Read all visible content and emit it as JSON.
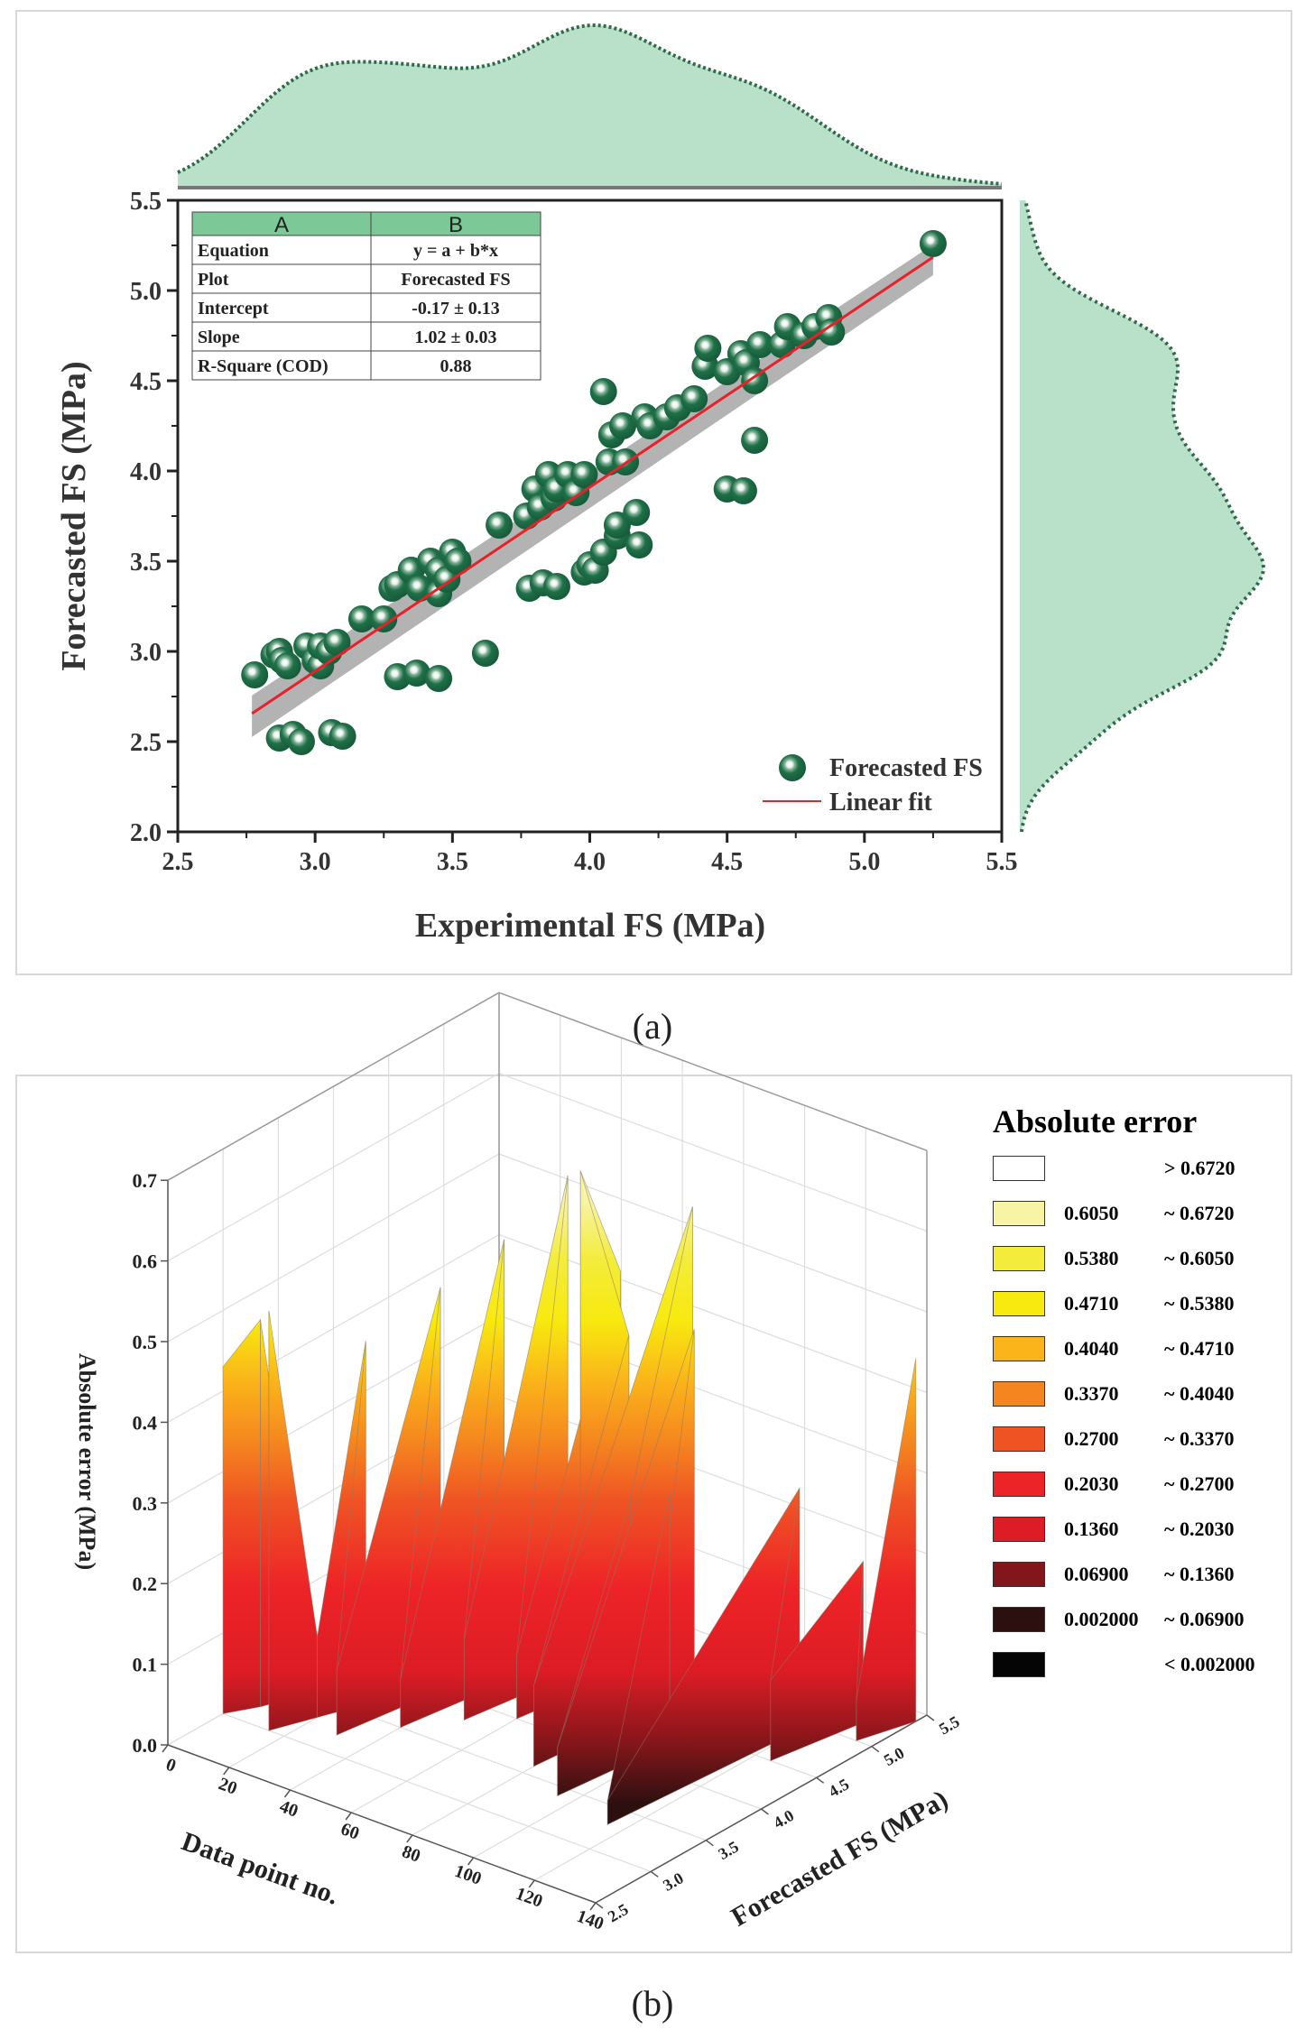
{
  "captions": {
    "a": "(a)",
    "b": "(b)"
  },
  "chart_data": [
    {
      "type": "scatter",
      "xlabel": "Experimental FS (MPa)",
      "ylabel": "Forecasted FS (MPa)",
      "xlim": [
        2.5,
        5.5
      ],
      "ylim": [
        2.0,
        5.5
      ],
      "xticks": [
        "2.5",
        "3.0",
        "3.5",
        "4.0",
        "4.5",
        "5.0",
        "5.5"
      ],
      "yticks": [
        "2.0",
        "2.5",
        "3.0",
        "3.5",
        "4.0",
        "4.5",
        "5.0",
        "5.5"
      ],
      "grid": false,
      "legend_placement": "bottom-right",
      "legend": [
        {
          "label": "Forecasted FS",
          "marker": "sphere"
        },
        {
          "label": "Linear fit",
          "marker": "line"
        }
      ],
      "colors": {
        "points": "#1e7048",
        "fit": "#e8202a",
        "band": "#b3b3b3",
        "density_fill": "#b9e0c9",
        "density_line": "#2e6b4a",
        "table_header": "#7cc896"
      },
      "fit": {
        "intercept": -0.17,
        "slope": 1.02
      },
      "marginals": {
        "top": "density of Experimental FS",
        "right": "density of Forecasted FS"
      },
      "table": {
        "header": [
          "A",
          "B"
        ],
        "rows": [
          [
            "Equation",
            "y = a + b*x"
          ],
          [
            "Plot",
            "Forecasted FS"
          ],
          [
            "Intercept",
            "-0.17 ± 0.13"
          ],
          [
            "Slope",
            "1.02 ± 0.03"
          ],
          [
            "R-Square (COD)",
            "0.88"
          ]
        ]
      },
      "points": [
        [
          2.78,
          2.87
        ],
        [
          2.85,
          2.98
        ],
        [
          2.87,
          3.0
        ],
        [
          2.88,
          2.95
        ],
        [
          2.9,
          2.92
        ],
        [
          2.97,
          3.03
        ],
        [
          3.0,
          2.95
        ],
        [
          3.02,
          2.92
        ],
        [
          3.02,
          3.03
        ],
        [
          3.05,
          3.0
        ],
        [
          3.08,
          3.05
        ],
        [
          3.17,
          3.18
        ],
        [
          3.25,
          3.18
        ],
        [
          3.28,
          3.35
        ],
        [
          3.3,
          3.37
        ],
        [
          3.35,
          3.45
        ],
        [
          3.38,
          3.35
        ],
        [
          3.42,
          3.5
        ],
        [
          3.45,
          3.45
        ],
        [
          3.45,
          3.32
        ],
        [
          3.48,
          3.4
        ],
        [
          3.5,
          3.55
        ],
        [
          3.52,
          3.5
        ],
        [
          3.67,
          3.7
        ],
        [
          3.77,
          3.75
        ],
        [
          3.8,
          3.9
        ],
        [
          3.82,
          3.8
        ],
        [
          3.85,
          3.98
        ],
        [
          3.87,
          3.85
        ],
        [
          3.88,
          3.9
        ],
        [
          3.92,
          3.98
        ],
        [
          3.95,
          3.88
        ],
        [
          3.98,
          3.98
        ],
        [
          4.05,
          4.44
        ],
        [
          4.07,
          4.05
        ],
        [
          4.08,
          4.2
        ],
        [
          4.12,
          4.25
        ],
        [
          4.13,
          4.05
        ],
        [
          4.2,
          4.3
        ],
        [
          4.22,
          4.25
        ],
        [
          4.28,
          4.3
        ],
        [
          4.32,
          4.35
        ],
        [
          4.38,
          4.4
        ],
        [
          4.42,
          4.58
        ],
        [
          4.43,
          4.68
        ],
        [
          4.5,
          4.55
        ],
        [
          4.55,
          4.65
        ],
        [
          4.57,
          4.6
        ],
        [
          4.6,
          4.5
        ],
        [
          4.62,
          4.7
        ],
        [
          4.7,
          4.7
        ],
        [
          4.72,
          4.8
        ],
        [
          4.78,
          4.75
        ],
        [
          4.82,
          4.8
        ],
        [
          4.87,
          4.85
        ],
        [
          4.88,
          4.77
        ],
        [
          5.25,
          5.26
        ],
        [
          2.87,
          2.52
        ],
        [
          2.92,
          2.54
        ],
        [
          2.95,
          2.5
        ],
        [
          3.06,
          2.55
        ],
        [
          3.1,
          2.53
        ],
        [
          3.3,
          2.86
        ],
        [
          3.37,
          2.88
        ],
        [
          3.45,
          2.85
        ],
        [
          3.62,
          2.99
        ],
        [
          3.78,
          3.35
        ],
        [
          3.83,
          3.38
        ],
        [
          3.88,
          3.36
        ],
        [
          3.98,
          3.44
        ],
        [
          4.0,
          3.48
        ],
        [
          4.02,
          3.45
        ],
        [
          4.05,
          3.55
        ],
        [
          4.1,
          3.64
        ],
        [
          4.1,
          3.7
        ],
        [
          4.17,
          3.77
        ],
        [
          4.18,
          3.59
        ],
        [
          4.5,
          3.9
        ],
        [
          4.56,
          3.89
        ],
        [
          4.6,
          4.17
        ]
      ]
    },
    {
      "type": "surface3d",
      "xlabel": "Data point no.",
      "ylabel": "Forecasted FS (MPa)",
      "zlabel": "Absolute error (MPa)",
      "xlim": [
        0,
        140
      ],
      "ylim": [
        2.5,
        5.5
      ],
      "zlim": [
        0,
        0.7
      ],
      "xticks": [
        "0",
        "20",
        "40",
        "60",
        "80",
        "100",
        "120",
        "140"
      ],
      "yticks": [
        "2.5",
        "3.0",
        "3.5",
        "4.0",
        "4.5",
        "5.0",
        "5.5"
      ],
      "zticks": [
        "0.0",
        "0.1",
        "0.2",
        "0.3",
        "0.4",
        "0.5",
        "0.6",
        "0.7"
      ],
      "grid": true,
      "legend_placement": "right",
      "legend_title": "Absolute error",
      "legend": [
        {
          "from": "",
          "to": "> 0.6720",
          "color": "#ffffff"
        },
        {
          "from": "0.6050",
          "to": "~ 0.6720",
          "color": "#f8f4a6"
        },
        {
          "from": "0.5380",
          "to": "~ 0.6050",
          "color": "#f3ec3a"
        },
        {
          "from": "0.4710",
          "to": "~ 0.5380",
          "color": "#f8e90e"
        },
        {
          "from": "0.4040",
          "to": "~ 0.4710",
          "color": "#fbb41a"
        },
        {
          "from": "0.3370",
          "to": "~ 0.4040",
          "color": "#f5861f"
        },
        {
          "from": "0.2700",
          "to": "~ 0.3370",
          "color": "#ef5324"
        },
        {
          "from": "0.2030",
          "to": "~ 0.2700",
          "color": "#ed2427"
        },
        {
          "from": "0.1360",
          "to": "~ 0.2030",
          "color": "#dd1c25"
        },
        {
          "from": "0.06900",
          "to": "~ 0.1360",
          "color": "#83161a"
        },
        {
          "from": "0.002000",
          "to": "~ 0.06900",
          "color": "#2c1010"
        },
        {
          "from": "",
          "to": "< 0.002000",
          "color": "#050505"
        }
      ],
      "surface_samples": [
        [
          0,
          3.0,
          0.43
        ],
        [
          5,
          3.2,
          0.48
        ],
        [
          10,
          3.5,
          0.05
        ],
        [
          15,
          3.0,
          0.52
        ],
        [
          20,
          3.3,
          0.1
        ],
        [
          25,
          3.6,
          0.45
        ],
        [
          30,
          3.2,
          0.08
        ],
        [
          35,
          4.0,
          0.5
        ],
        [
          40,
          3.5,
          0.06
        ],
        [
          45,
          4.3,
          0.55
        ],
        [
          50,
          3.8,
          0.1
        ],
        [
          55,
          4.6,
          0.62
        ],
        [
          60,
          4.0,
          0.08
        ],
        [
          65,
          4.8,
          0.5
        ],
        [
          70,
          4.3,
          0.67
        ],
        [
          75,
          4.6,
          0.45
        ],
        [
          80,
          3.6,
          0.1
        ],
        [
          85,
          4.9,
          0.6
        ],
        [
          90,
          4.2,
          0.3
        ],
        [
          95,
          3.4,
          0.06
        ],
        [
          100,
          4.5,
          0.5
        ],
        [
          105,
          3.9,
          0.05
        ],
        [
          110,
          4.0,
          0.35
        ],
        [
          115,
          3.3,
          0.03
        ],
        [
          120,
          4.9,
          0.3
        ],
        [
          125,
          4.5,
          0.1
        ],
        [
          130,
          5.2,
          0.2
        ],
        [
          135,
          5.0,
          0.05
        ],
        [
          140,
          5.4,
          0.45
        ]
      ]
    }
  ]
}
